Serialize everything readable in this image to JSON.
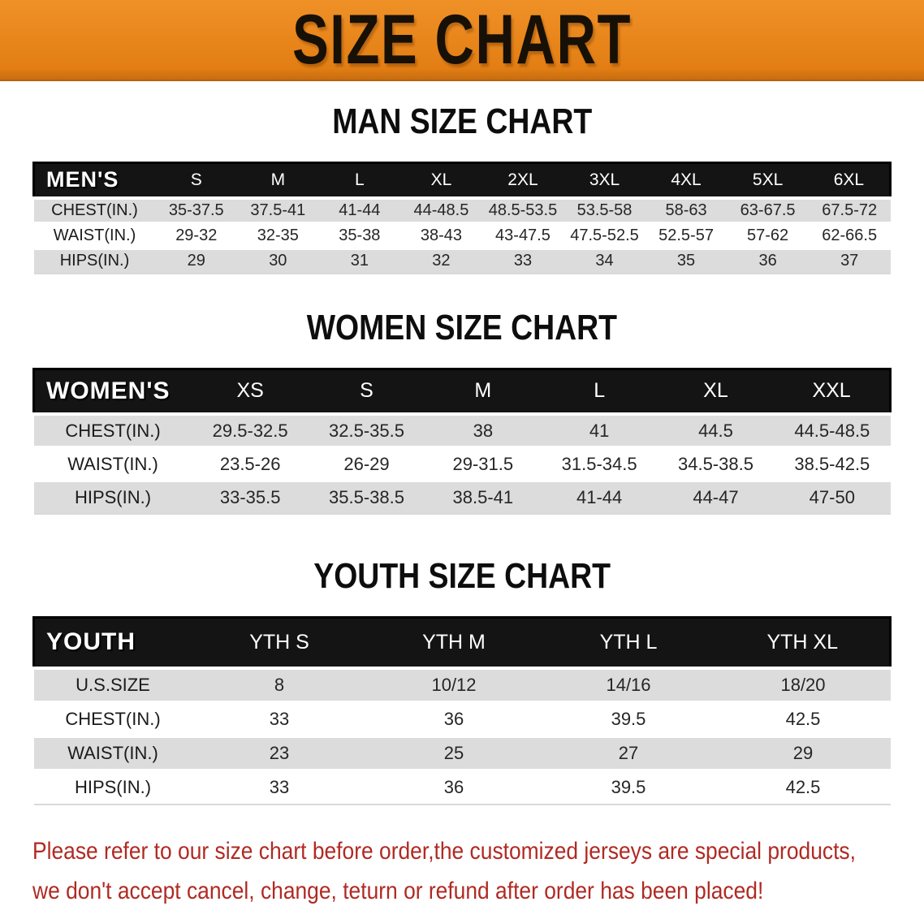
{
  "banner": {
    "title": "SIZE CHART"
  },
  "sections": [
    {
      "heading": "MAN SIZE CHART",
      "table": {
        "corner_label": "MEN'S",
        "columns": [
          "S",
          "M",
          "L",
          "XL",
          "2XL",
          "3XL",
          "4XL",
          "5XL",
          "6XL"
        ],
        "rows": [
          {
            "label": "CHEST(IN.)",
            "values": [
              "35-37.5",
              "37.5-41",
              "41-44",
              "44-48.5",
              "48.5-53.5",
              "53.5-58",
              "58-63",
              "63-67.5",
              "67.5-72"
            ]
          },
          {
            "label": "WAIST(IN.)",
            "values": [
              "29-32",
              "32-35",
              "35-38",
              "38-43",
              "43-47.5",
              "47.5-52.5",
              "52.5-57",
              "57-62",
              "62-66.5"
            ]
          },
          {
            "label": "HIPS(IN.)",
            "values": [
              "29",
              "30",
              "31",
              "32",
              "33",
              "34",
              "35",
              "36",
              "37"
            ]
          }
        ]
      }
    },
    {
      "heading": "WOMEN SIZE CHART",
      "table": {
        "corner_label": "WOMEN'S",
        "columns": [
          "XS",
          "S",
          "M",
          "L",
          "XL",
          "XXL"
        ],
        "rows": [
          {
            "label": "CHEST(IN.)",
            "values": [
              "29.5-32.5",
              "32.5-35.5",
              "38",
              "41",
              "44.5",
              "44.5-48.5"
            ]
          },
          {
            "label": "WAIST(IN.)",
            "values": [
              "23.5-26",
              "26-29",
              "29-31.5",
              "31.5-34.5",
              "34.5-38.5",
              "38.5-42.5"
            ]
          },
          {
            "label": "HIPS(IN.)",
            "values": [
              "33-35.5",
              "35.5-38.5",
              "38.5-41",
              "41-44",
              "44-47",
              "47-50"
            ]
          }
        ]
      }
    },
    {
      "heading": "YOUTH SIZE CHART",
      "table": {
        "corner_label": "YOUTH",
        "columns": [
          "YTH S",
          "YTH M",
          "YTH L",
          "YTH XL"
        ],
        "rows": [
          {
            "label": "U.S.SIZE",
            "values": [
              "8",
              "10/12",
              "14/16",
              "18/20"
            ]
          },
          {
            "label": "CHEST(IN.)",
            "values": [
              "33",
              "36",
              "39.5",
              "42.5"
            ]
          },
          {
            "label": "WAIST(IN.)",
            "values": [
              "23",
              "25",
              "27",
              "29"
            ]
          },
          {
            "label": "HIPS(IN.)",
            "values": [
              "33",
              "36",
              "39.5",
              "42.5"
            ]
          }
        ]
      }
    }
  ],
  "footer_note": {
    "line1": "Please refer to our size chart before order,the customized jerseys are special products,",
    "line2": "we don't accept cancel, change, teturn or refund after order has been placed!"
  },
  "colors": {
    "banner_bg": "#e8861c",
    "banner_text": "#171007",
    "header_bar_bg": "#141414",
    "row_stripe": "#dcdcdc",
    "note_red": "#b02a23"
  }
}
